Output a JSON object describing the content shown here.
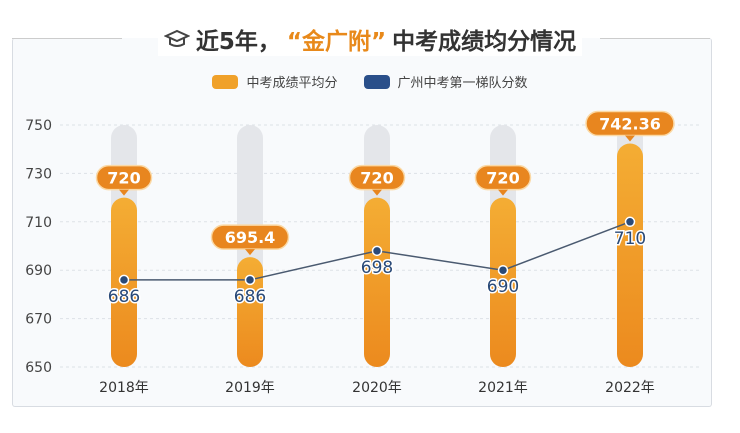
{
  "title": {
    "prefix": "近5年，",
    "highlight": "“金广附”",
    "suffix": "中考成绩均分情况",
    "icon": "graduation-cap-icon"
  },
  "colors": {
    "bar": "#f0a12a",
    "label": "#e8861f",
    "line": "#2a4a78",
    "track": "#e4e6ea"
  },
  "chart_data": {
    "type": "bar",
    "title": "近5年，“金广附”中考成绩均分情况",
    "categories": [
      "2018年",
      "2019年",
      "2020年",
      "2021年",
      "2022年"
    ],
    "yticks": [
      750,
      730,
      710,
      690,
      670,
      650
    ],
    "ylim": [
      650,
      750
    ],
    "grid": true,
    "legend_position": "top-center",
    "series": [
      {
        "name": "中考成绩平均分",
        "type": "bar",
        "values": [
          720,
          695.4,
          720,
          720,
          742.36
        ],
        "labels": [
          "720",
          "695.4",
          "720",
          "720",
          "742.36"
        ]
      },
      {
        "name": "广州中考第一梯队分数",
        "type": "line",
        "values": [
          686,
          686,
          698,
          690,
          710
        ],
        "labels": [
          "686",
          "686",
          "698",
          "690",
          "710"
        ]
      }
    ]
  }
}
